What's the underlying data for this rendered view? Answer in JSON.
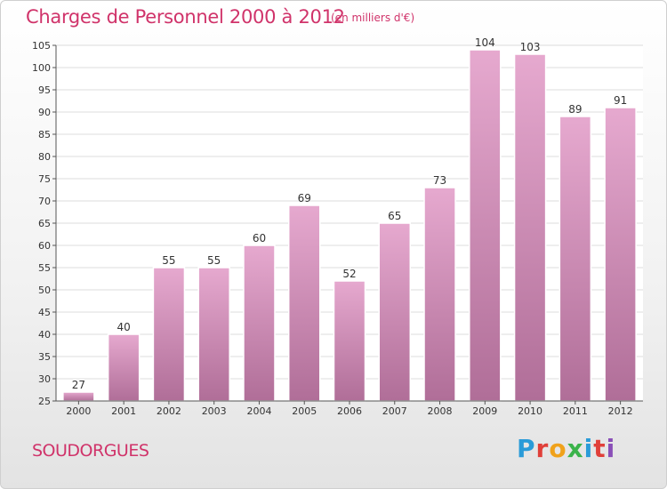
{
  "header": {
    "title": "Charges de Personnel 2000 à 2012",
    "subtitle": "(en milliers d'€)"
  },
  "footer": {
    "commune": "SOUDORGUES",
    "logo_text": "Proxiti",
    "logo_colors": [
      "#2a9bd8",
      "#e0403a",
      "#f0a21b",
      "#3ab34a",
      "#2a9bd8",
      "#e0403a",
      "#8a4fb8"
    ]
  },
  "chart_data": {
    "type": "bar",
    "title": "Charges de Personnel 2000 à 2012",
    "subtitle": "(en milliers d'€)",
    "categories": [
      "2000",
      "2001",
      "2002",
      "2003",
      "2004",
      "2005",
      "2006",
      "2007",
      "2008",
      "2009",
      "2010",
      "2011",
      "2012"
    ],
    "values": [
      27,
      40,
      55,
      55,
      60,
      69,
      52,
      65,
      73,
      104,
      103,
      89,
      91
    ],
    "ylim": [
      25,
      105
    ],
    "yticks": [
      25,
      30,
      35,
      40,
      45,
      50,
      55,
      60,
      65,
      70,
      75,
      80,
      85,
      90,
      95,
      100,
      105
    ],
    "grid": true,
    "legend": "none",
    "bar_color": "#cc7aa9",
    "grid_color": "#dcdcdc"
  }
}
